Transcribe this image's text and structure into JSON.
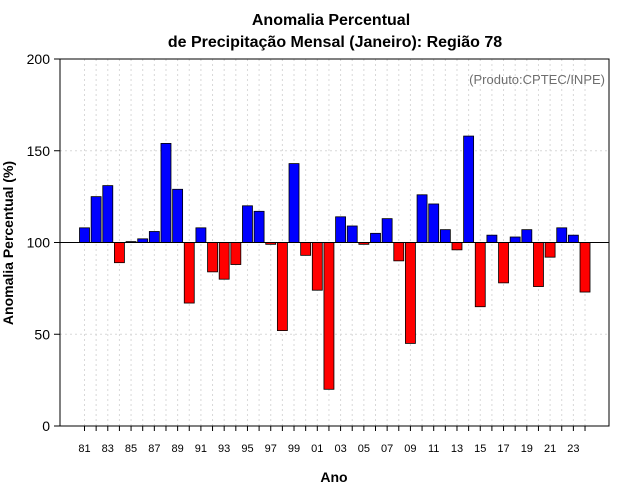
{
  "chart_data": {
    "type": "bar",
    "title": [
      "Anomalia Percentual",
      "de Precipitação Mensal (Janeiro): Região 78"
    ],
    "credit": "(Produto:CPTEC/INPE)",
    "xlabel": "Ano",
    "ylabel": "Anomalia Percentual (%)",
    "ylim": [
      0,
      200
    ],
    "yticks": [
      0,
      50,
      100,
      150,
      200
    ],
    "baseline": 100,
    "grid": true,
    "colors": {
      "above": "#0000ff",
      "below": "#ff0000"
    },
    "categories": [
      "81",
      "82",
      "83",
      "84",
      "85",
      "86",
      "87",
      "88",
      "89",
      "90",
      "91",
      "92",
      "93",
      "94",
      "95",
      "96",
      "97",
      "98",
      "99",
      "00",
      "01",
      "02",
      "03",
      "04",
      "05",
      "06",
      "07",
      "08",
      "09",
      "10",
      "11",
      "12",
      "13",
      "14",
      "15",
      "16",
      "17",
      "18",
      "19",
      "20",
      "21",
      "22",
      "23",
      "24"
    ],
    "tick_labels": [
      "81",
      "83",
      "85",
      "87",
      "89",
      "91",
      "93",
      "95",
      "97",
      "99",
      "01",
      "03",
      "05",
      "07",
      "09",
      "11",
      "13",
      "15",
      "17",
      "19",
      "21",
      "23"
    ],
    "values": [
      108,
      125,
      131,
      89,
      100.5,
      102,
      106,
      154,
      129,
      67,
      108,
      84,
      80,
      88,
      120,
      117,
      99,
      52,
      143,
      93,
      74,
      20,
      114,
      109,
      99,
      105,
      113,
      90,
      45,
      126,
      121,
      107,
      96,
      158,
      65,
      104,
      78,
      103,
      107,
      76,
      92,
      108,
      104,
      73
    ]
  }
}
